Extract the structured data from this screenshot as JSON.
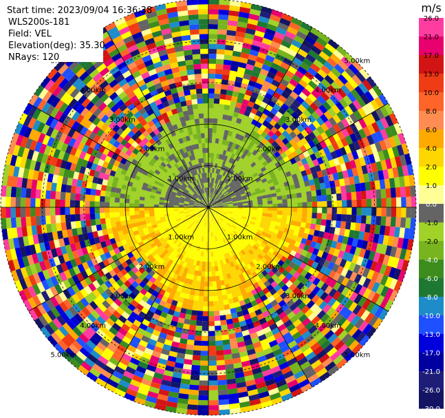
{
  "chart_data": {
    "type": "heatmap",
    "plot_kind": "lidar PPI (polar plan position indicator)",
    "info": {
      "start_time": "Start time: 2023/09/04 16:36:38",
      "instrument": "WLS200s-181",
      "field": "Field: VEL",
      "elevation": "Elevation(deg): 35.30",
      "nrays": "NRays: 120"
    },
    "range_labels": [
      "1.00km",
      "2.00km",
      "3.00km",
      "4.00km",
      "5.00km"
    ],
    "range_rings_km": [
      1,
      2,
      3,
      4,
      5
    ],
    "max_range_km": 5.0,
    "n_rays": 120,
    "colorbar": {
      "unit": "m/s",
      "ticks": [
        "26.0",
        "21.0",
        "17.0",
        "13.0",
        "10.0",
        "8.0",
        "6.0",
        "4.0",
        "2.0",
        "1.0",
        "0.0",
        "-1.0",
        "-2.0",
        "-4.0",
        "-6.0",
        "-8.0",
        "-10.0",
        "-13.0",
        "-17.0",
        "-21.0",
        "-26.0",
        "-30.0"
      ],
      "colors": [
        "#ff3ca0",
        "#e8006e",
        "#d21414",
        "#f03c14",
        "#ff6428",
        "#ff8c50",
        "#ffaa00",
        "#ffd700",
        "#ffff00",
        "#ffff96",
        "#646464",
        "#a0d228",
        "#78b41e",
        "#3c8c1e",
        "#1e7832",
        "#1e8cc8",
        "#1e50ff",
        "#0000dc",
        "#0000a0",
        "#1e1e78",
        "#141464"
      ]
    },
    "field_description": {
      "near_positive_sector_deg": [
        90,
        270
      ],
      "near_negative_sector_deg": [
        270,
        450
      ],
      "clean_signal_radius_km": 2.3,
      "noise_beyond": true
    }
  }
}
